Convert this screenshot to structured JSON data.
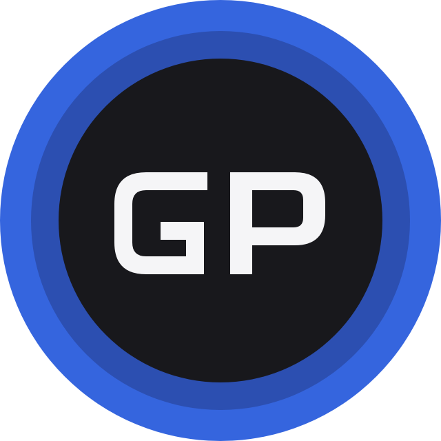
{
  "logo": {
    "monogram": "GP",
    "colors": {
      "outer_ring": "#3565DE",
      "inner_ring": "#2C4FB1",
      "disc": "#18181C",
      "letters": "#F5F5F7"
    }
  }
}
